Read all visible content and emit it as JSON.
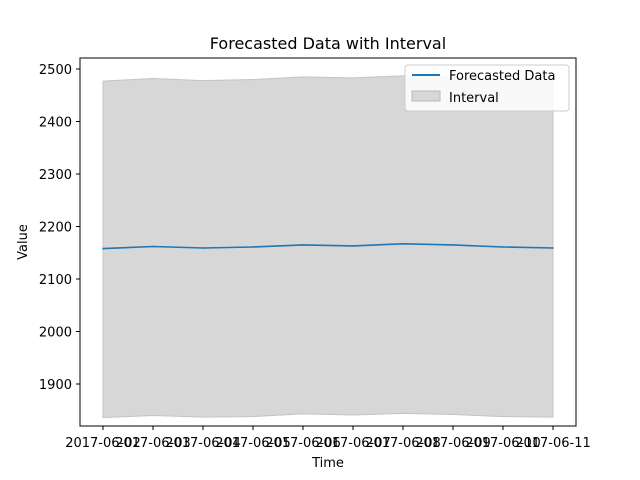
{
  "chart_data": {
    "type": "line",
    "title": "Forecasted Data with Interval",
    "xlabel": "Time",
    "ylabel": "Value",
    "x": [
      "2017-06-02",
      "2017-06-03",
      "2017-06-04",
      "2017-06-05",
      "2017-06-06",
      "2017-06-07",
      "2017-06-08",
      "2017-06-09",
      "2017-06-10",
      "2017-06-11"
    ],
    "yticks": [
      1900,
      2000,
      2100,
      2200,
      2300,
      2400,
      2500
    ],
    "ylim": [
      1820,
      2521
    ],
    "grid": false,
    "legend_position": "upper right",
    "series": [
      {
        "name": "Forecasted Data",
        "kind": "line",
        "color": "#1f77b4",
        "values": [
          2158,
          2162,
          2159,
          2161,
          2165,
          2163,
          2167,
          2165,
          2161,
          2159
        ]
      },
      {
        "name": "Interval",
        "kind": "band",
        "color": "#d7d7d7",
        "lower": [
          1836,
          1840,
          1837,
          1838,
          1843,
          1841,
          1844,
          1842,
          1838,
          1837
        ],
        "upper": [
          2477,
          2482,
          2478,
          2480,
          2485,
          2483,
          2487,
          2484,
          2481,
          2478
        ]
      }
    ]
  }
}
